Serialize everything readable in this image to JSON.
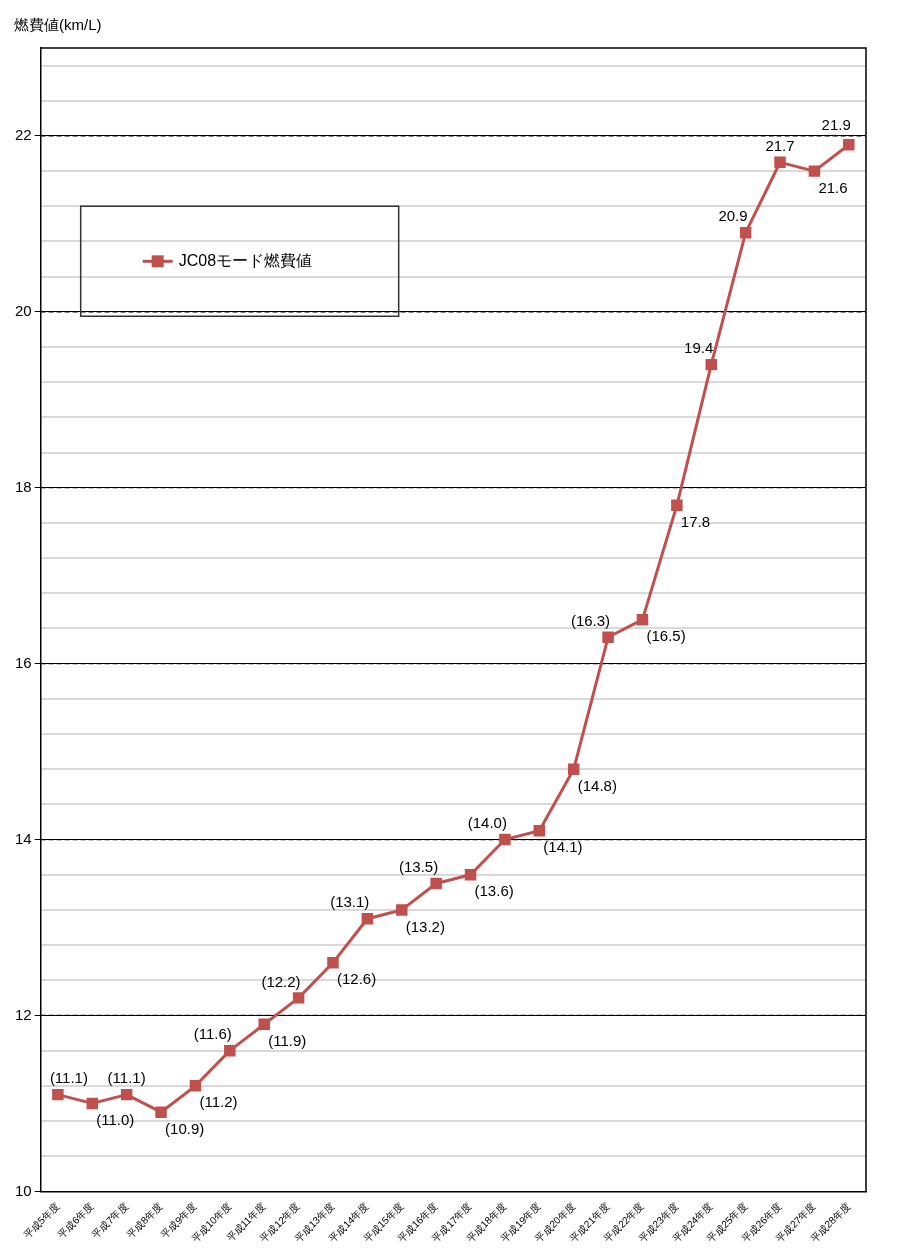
{
  "chart_data": {
    "type": "line",
    "ylabel": "燃費値(km/L)",
    "categories": [
      "平成5年度",
      "平成6年度",
      "平成7年度",
      "平成8年度",
      "平成9年度",
      "平成10年度",
      "平成11年度",
      "平成12年度",
      "平成13年度",
      "平成14年度",
      "平成15年度",
      "平成16年度",
      "平成17年度",
      "平成18年度",
      "平成19年度",
      "平成20年度",
      "平成21年度",
      "平成22年度",
      "平成23年度",
      "平成24年度",
      "平成25年度",
      "平成26年度",
      "平成27年度",
      "平成28年度"
    ],
    "series": [
      {
        "name": "JC08モード燃費値",
        "color": "#c0504d",
        "values": [
          11.1,
          11.0,
          11.1,
          10.9,
          11.2,
          11.6,
          11.9,
          12.2,
          12.6,
          13.1,
          13.2,
          13.5,
          13.6,
          14.0,
          14.1,
          14.8,
          16.3,
          16.5,
          17.8,
          19.4,
          20.9,
          21.7,
          21.6,
          21.9
        ],
        "value_labels": [
          "(11.1)",
          "(11.0)",
          "(11.1)",
          "(10.9)",
          "(11.2)",
          "(11.6)",
          "(11.9)",
          "(12.2)",
          "(12.6)",
          "(13.1)",
          "(13.2)",
          "(13.5)",
          "(13.6)",
          "(14.0)",
          "(14.1)",
          "(14.8)",
          "(16.3)",
          "(16.5)",
          "17.8",
          "19.4",
          "20.9",
          "21.7",
          "21.6",
          "21.9"
        ]
      }
    ],
    "ylim": [
      10,
      23
    ],
    "yticks": [
      10,
      {
        "value": 10.4,
        "label": null
      },
      {
        "value": 10.8,
        "label": null
      },
      {
        "value": 11.2,
        "label": null
      },
      {
        "value": 11.6,
        "label": null
      },
      12,
      {
        "value": 12.4,
        "label": null
      },
      {
        "value": 12.8,
        "label": null
      },
      {
        "value": 13.2,
        "label": null
      },
      {
        "value": 13.6,
        "label": null
      },
      14,
      {
        "value": 14.4,
        "label": null
      },
      {
        "value": 14.8,
        "label": null
      },
      {
        "value": 15.2,
        "label": null
      },
      {
        "value": 15.6,
        "label": null
      },
      16,
      {
        "value": 16.4,
        "label": null
      },
      {
        "value": 16.8,
        "label": null
      },
      {
        "value": 17.2,
        "label": null
      },
      {
        "value": 17.6,
        "label": null
      },
      18,
      {
        "value": 18.4,
        "label": null
      },
      {
        "value": 18.8,
        "label": null
      },
      {
        "value": 19.2,
        "label": null
      },
      {
        "value": 19.6,
        "label": null
      },
      20,
      {
        "value": 20.4,
        "label": null
      },
      {
        "value": 20.8,
        "label": null
      },
      {
        "value": 21.2,
        "label": null
      },
      {
        "value": 21.6,
        "label": null
      },
      22,
      {
        "value": 22.4,
        "label": null
      },
      {
        "value": 22.8,
        "label": null
      }
    ],
    "grid": true,
    "legend": "top left",
    "marker": "square",
    "line_style": "solid"
  }
}
